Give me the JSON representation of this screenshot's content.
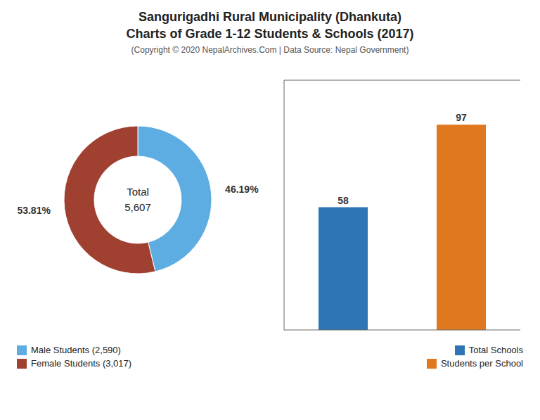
{
  "title": [
    "Sangurigadhi Rural Municipality (Dhankuta)",
    "Charts of Grade 1-12 Students & Schools (2017)"
  ],
  "subtitle": "(Copyright © 2020 NepalArchives.Com | Data Source: Nepal Government)",
  "chart_data": [
    {
      "type": "pie",
      "categories": [
        "Male Students (2,590)",
        "Female Students (3,017)"
      ],
      "values": [
        46.19,
        53.81
      ],
      "value_labels": [
        "46.19%",
        "53.81%"
      ],
      "colors": [
        "#5dade2",
        "#a04030"
      ],
      "data_labels": true,
      "legend": "lower left",
      "annotations": [
        "Total",
        "5,607"
      ]
    },
    {
      "type": "bar",
      "categories": [
        "Total Schools",
        "Students per School"
      ],
      "values": [
        58,
        97
      ],
      "colors": [
        "#2e75b6",
        "#e07820"
      ],
      "ylim": [
        0,
        118
      ],
      "data_labels": true,
      "tick_labels": false,
      "legend": "lower right"
    }
  ]
}
